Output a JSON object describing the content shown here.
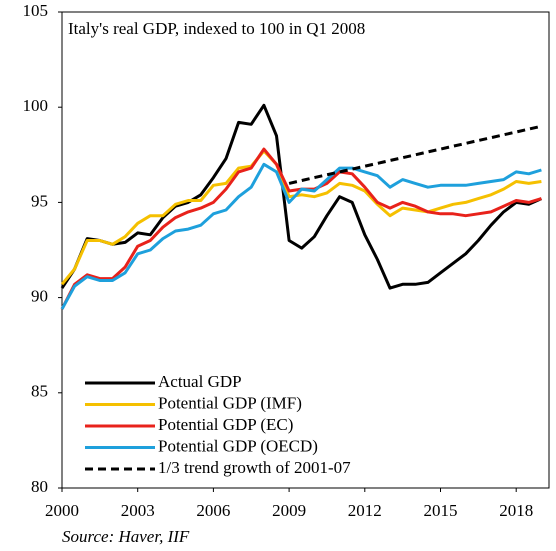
{
  "chart_data": {
    "type": "line",
    "title": "Italy's real GDP, indexed to 100 in Q1 2008",
    "source": "Source: Haver, IIF",
    "x": [
      2000,
      2000.5,
      2001,
      2001.5,
      2002,
      2002.5,
      2003,
      2003.5,
      2004,
      2004.5,
      2005,
      2005.5,
      2006,
      2006.5,
      2007,
      2007.5,
      2008,
      2008.5,
      2009,
      2009.5,
      2010,
      2010.5,
      2011,
      2011.5,
      2012,
      2012.5,
      2013,
      2013.5,
      2014,
      2014.5,
      2015,
      2015.5,
      2016,
      2016.5,
      2017,
      2017.5,
      2018,
      2018.5,
      2019
    ],
    "series": [
      {
        "name": "Actual GDP",
        "color": "#000000",
        "dashed": false,
        "values": [
          90.5,
          91.5,
          93.1,
          93.0,
          92.8,
          92.9,
          93.4,
          93.3,
          94.2,
          94.8,
          95.0,
          95.4,
          96.3,
          97.3,
          99.2,
          99.1,
          100.1,
          98.5,
          93.0,
          92.6,
          93.2,
          94.3,
          95.3,
          95.0,
          93.3,
          92.0,
          90.5,
          90.7,
          90.7,
          90.8,
          91.3,
          91.8,
          92.3,
          93.0,
          93.8,
          94.5,
          95.0,
          94.9,
          95.2
        ]
      },
      {
        "name": "Potential GDP (IMF)",
        "color": "#f5c000",
        "dashed": false,
        "values": [
          90.7,
          91.5,
          93.0,
          93.0,
          92.8,
          93.2,
          93.9,
          94.3,
          94.3,
          94.9,
          95.1,
          95.1,
          95.9,
          96.0,
          96.8,
          96.9,
          97.7,
          97.0,
          95.3,
          95.4,
          95.3,
          95.5,
          96.0,
          95.9,
          95.6,
          94.9,
          94.3,
          94.7,
          94.6,
          94.5,
          94.7,
          94.9,
          95.0,
          95.2,
          95.4,
          95.7,
          96.1,
          96.0,
          96.1
        ]
      },
      {
        "name": "Potential GDP (EC)",
        "color": "#e8221b",
        "dashed": false,
        "values": [
          89.4,
          90.7,
          91.2,
          91.0,
          91.0,
          91.6,
          92.7,
          93.0,
          93.7,
          94.2,
          94.5,
          94.7,
          95.0,
          95.7,
          96.6,
          96.8,
          97.8,
          97.0,
          95.6,
          95.7,
          95.7,
          96.0,
          96.6,
          96.5,
          95.8,
          95.0,
          94.7,
          95.0,
          94.8,
          94.5,
          94.4,
          94.4,
          94.3,
          94.4,
          94.5,
          94.8,
          95.1,
          95.0,
          95.2
        ]
      },
      {
        "name": "Potential GDP (OECD)",
        "color": "#1ea0dc",
        "dashed": false,
        "values": [
          89.4,
          90.6,
          91.1,
          90.9,
          90.9,
          91.3,
          92.3,
          92.5,
          93.1,
          93.5,
          93.6,
          93.8,
          94.4,
          94.6,
          95.3,
          95.8,
          97.0,
          96.6,
          95.0,
          95.7,
          95.6,
          96.2,
          96.8,
          96.8,
          96.6,
          96.4,
          95.8,
          96.2,
          96.0,
          95.8,
          95.9,
          95.9,
          95.9,
          96.0,
          96.1,
          96.2,
          96.6,
          96.5,
          96.7
        ]
      },
      {
        "name": "1/3 trend growth of 2001-07",
        "color": "#000000",
        "dashed": true,
        "values": [
          null,
          null,
          null,
          null,
          null,
          null,
          null,
          null,
          null,
          null,
          null,
          null,
          null,
          null,
          null,
          null,
          null,
          null,
          96.0,
          96.15,
          96.3,
          96.45,
          96.6,
          96.75,
          96.9,
          97.05,
          97.2,
          97.35,
          97.5,
          97.65,
          97.8,
          97.95,
          98.1,
          98.25,
          98.4,
          98.55,
          98.7,
          98.85,
          99.0
        ]
      }
    ],
    "xlim": [
      2000,
      2019.3
    ],
    "xticks": [
      2000,
      2003,
      2006,
      2009,
      2012,
      2015,
      2018
    ],
    "ylim": [
      80,
      105
    ],
    "yticks": [
      80,
      85,
      90,
      95,
      100,
      105
    ],
    "grid": false,
    "legend": "lower left"
  }
}
